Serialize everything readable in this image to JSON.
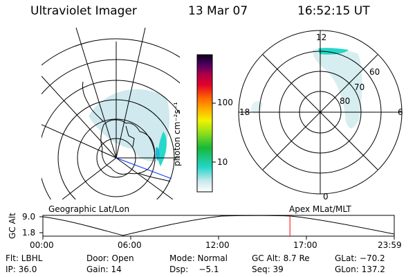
{
  "header": {
    "instrument": "Ultraviolet Imager",
    "date": "13 Mar 07",
    "time": "16:52:15 UT"
  },
  "colorbar": {
    "unit_label": "photon cm⁻²s⁻¹",
    "ticks": [
      "100",
      "10"
    ]
  },
  "polar_plot": {
    "mlt_labels": [
      "12",
      "18",
      "6",
      "0"
    ],
    "lat_labels": [
      "60",
      "70",
      "80"
    ]
  },
  "projection_labels": {
    "left": "Geographic Lat/Lon",
    "right": "Apex MLat/MLT"
  },
  "altitude_plot": {
    "ylabel": "GC Alt",
    "yticks": [
      "9.0",
      "1.8"
    ],
    "xticks": [
      "00:00",
      "06:00",
      "12:00",
      "17:00",
      "23:59"
    ],
    "current_time_fraction": 0.7031
  },
  "status": {
    "flt": "Flt: LBHL",
    "door": "Door: Open",
    "mode": "Mode: Normal",
    "gc_alt": "GC Alt: 8.7 Re",
    "glat": "GLat: −70.2",
    "ip": "IP: 36.0",
    "gain": "Gain: 14",
    "dsp": "Dsp:    −5.1",
    "seq": "Seq: 39",
    "glon": "GLon: 137.2"
  },
  "colors": {
    "emission": "#c8e8ea",
    "bright_emission": "#22d6c8",
    "marker_line": "#ff0000",
    "track_line": "#0030ff"
  }
}
